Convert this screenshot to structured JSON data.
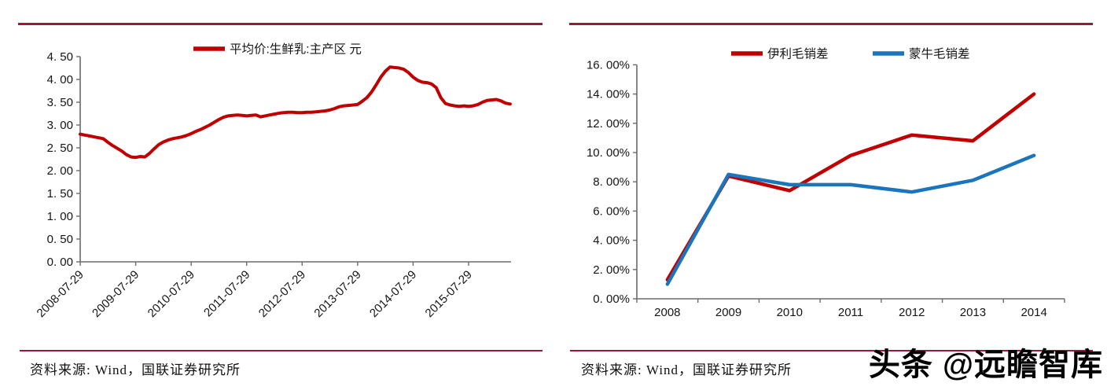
{
  "page": {
    "background": "#ffffff",
    "rule_color": "#A01638",
    "watermark": "头条 @远瞻智库"
  },
  "panels": [
    {
      "source": "资料来源: Wind，国联证券研究所"
    },
    {
      "source": "资料来源: Wind，国联证券研究所"
    }
  ],
  "chart_data": [
    {
      "type": "line",
      "title": "",
      "xlabel": "",
      "ylabel": "元",
      "legend_position": "top",
      "grid": false,
      "ylim": [
        0,
        4.5
      ],
      "y_tick_labels": [
        "0. 00",
        "0. 50",
        "1. 00",
        "1. 50",
        "2. 00",
        "2. 50",
        "3. 00",
        "3. 50",
        "4. 00",
        "4. 50"
      ],
      "x_tick_labels": [
        "2008-07-29",
        "2009-07-29",
        "2010-07-29",
        "2011-07-29",
        "2012-07-29",
        "2013-07-29",
        "2014-07-29",
        "2015-07-29"
      ],
      "x_start": "2008-07",
      "x_step": "monthly",
      "series": [
        {
          "name": "平均价:生鲜乳:主产区 元",
          "color": "#C00000",
          "values": [
            2.8,
            2.78,
            2.76,
            2.74,
            2.72,
            2.7,
            2.62,
            2.55,
            2.49,
            2.43,
            2.35,
            2.3,
            2.29,
            2.31,
            2.3,
            2.38,
            2.48,
            2.57,
            2.63,
            2.67,
            2.7,
            2.72,
            2.74,
            2.77,
            2.81,
            2.86,
            2.9,
            2.95,
            3.0,
            3.06,
            3.12,
            3.17,
            3.2,
            3.21,
            3.22,
            3.21,
            3.2,
            3.21,
            3.22,
            3.18,
            3.2,
            3.22,
            3.24,
            3.26,
            3.27,
            3.28,
            3.28,
            3.27,
            3.27,
            3.28,
            3.28,
            3.29,
            3.3,
            3.31,
            3.33,
            3.36,
            3.4,
            3.42,
            3.43,
            3.44,
            3.45,
            3.52,
            3.6,
            3.72,
            3.88,
            4.05,
            4.18,
            4.27,
            4.26,
            4.25,
            4.22,
            4.15,
            4.05,
            3.98,
            3.94,
            3.93,
            3.9,
            3.82,
            3.6,
            3.47,
            3.44,
            3.42,
            3.41,
            3.42,
            3.41,
            3.42,
            3.45,
            3.5,
            3.54,
            3.55,
            3.56,
            3.53,
            3.48,
            3.46
          ]
        }
      ]
    },
    {
      "type": "line",
      "title": "",
      "xlabel": "",
      "ylabel": "",
      "legend_position": "top",
      "grid": false,
      "ylim_percent": [
        0,
        16
      ],
      "y_tick_labels": [
        "0. 00%",
        "2. 00%",
        "4. 00%",
        "6. 00%",
        "8. 00%",
        "10. 00%",
        "12. 00%",
        "14. 00%",
        "16. 00%"
      ],
      "categories": [
        "2008",
        "2009",
        "2010",
        "2011",
        "2012",
        "2013",
        "2014"
      ],
      "series": [
        {
          "name": "伊利毛销差",
          "color": "#C00000",
          "values_percent": [
            1.3,
            8.4,
            7.4,
            9.8,
            11.2,
            10.8,
            14.0
          ]
        },
        {
          "name": "蒙牛毛销差",
          "color": "#1B75BC",
          "values_percent": [
            1.0,
            8.5,
            7.8,
            7.8,
            7.3,
            8.1,
            9.8
          ]
        }
      ]
    }
  ]
}
